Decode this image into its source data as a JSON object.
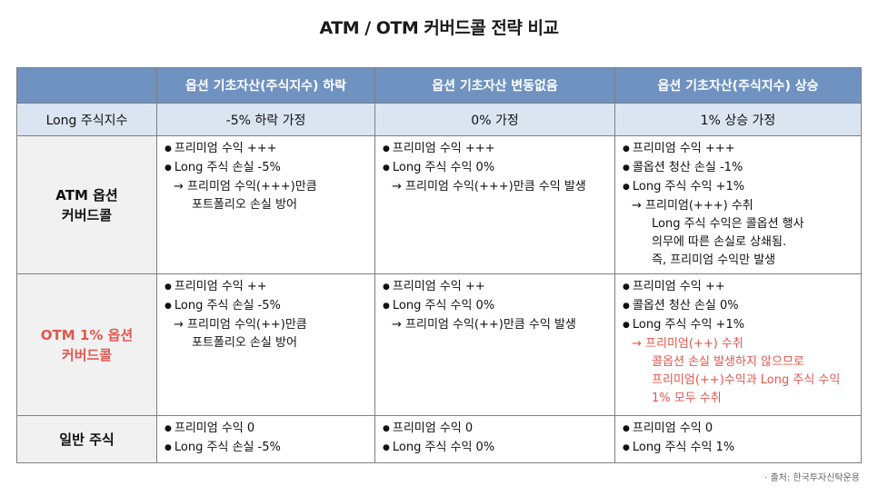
{
  "title": "ATM / OTM 커버드콜 전략 비교",
  "header": {
    "corner": "",
    "col1": "옵션 기초자산(주식지수) 하락",
    "col2": "옵션 기초자산 변동없음",
    "col3": "옵션 기초자산(주식지수) 상승"
  },
  "subheader": {
    "label": "Long 주식지수",
    "col1": "-5% 하락 가정",
    "col2": "0% 가정",
    "col3": "1% 상승 가정"
  },
  "rows": [
    {
      "label_line1": "ATM 옵션",
      "label_line2": "커버드콜",
      "col1": [
        "프리미엄 수익 +++",
        "Long 주식 손실 -5%",
        "→ 프리미엄 수익(+++)만큼",
        "포트폴리오 손실 방어"
      ],
      "col2": [
        "프리미엄 수익 +++",
        "Long 주식 수익 0%",
        "→ 프리미엄 수익(+++)만큼 수익 발생"
      ],
      "col3": [
        "프리미엄 수익 +++",
        "콜옵션 청산 손실 -1%",
        "Long 주식 수익 +1%",
        "→ 프리미엄(+++) 수취",
        "Long 주식 수익은 콜옵션 행사",
        "의무에 따른 손실로 상쇄됨.",
        "즉, 프리미엄 수익만 발생"
      ]
    },
    {
      "label_line1": "OTM 1% 옵션",
      "label_line2": "커버드콜",
      "col1": [
        "프리미엄 수익 ++",
        "Long 주식 손실 -5%",
        "→ 프리미엄 수익(++)만큼",
        "포트폴리오 손실 방어"
      ],
      "col2": [
        "프리미엄 수익 ++",
        "Long 주식 수익 0%",
        "→ 프리미엄 수익(++)만큼 수익 발생"
      ],
      "col3": [
        "프리미엄 수익 ++",
        "콜옵션 청산 손실 0%",
        "Long 주식 수익 +1%",
        "→ 프리미엄(++) 수취",
        "콜옵션 손실 발생하지 않으므로",
        "프리미엄(++)수익과 Long 주식 수익",
        "1% 모두 수취"
      ]
    },
    {
      "label_line1": "일반 주식",
      "label_line2": "",
      "col1": [
        "프리미엄 수익 0",
        "Long 주식 손실 -5%"
      ],
      "col2": [
        "프리미엄 수익 0",
        "Long 주식 수익 0%"
      ],
      "col3": [
        "프리미엄 수익 0",
        "Long 주식 수익 1%"
      ]
    }
  ],
  "source": "· 출처: 한국투자신탁운용",
  "colors": {
    "header_bg": "#6f92c1",
    "subheader_bg": "#dbe5f2",
    "row_head_bg": "#f1f1f1",
    "highlight": "#e2574f"
  }
}
